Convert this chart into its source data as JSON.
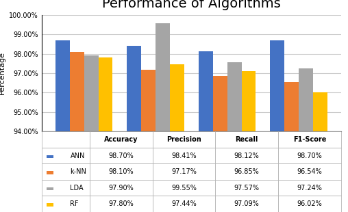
{
  "title": "Performance of Algorithms",
  "categories": [
    "Accuracy",
    "Precision",
    "Recall",
    "F1-Score"
  ],
  "algorithms": [
    "ANN",
    "k-NN",
    "LDA",
    "RF"
  ],
  "values": {
    "ANN": [
      98.7,
      98.41,
      98.12,
      98.7
    ],
    "k-NN": [
      98.1,
      97.17,
      96.85,
      96.54
    ],
    "LDA": [
      97.9,
      99.55,
      97.57,
      97.24
    ],
    "RF": [
      97.8,
      97.44,
      97.09,
      96.02
    ]
  },
  "colors": {
    "ANN": "#4472C4",
    "k-NN": "#ED7D31",
    "LDA": "#A5A5A5",
    "RF": "#FFC000"
  },
  "ylabel": "Percentage",
  "ylim": [
    94.0,
    100.0
  ],
  "yticks": [
    94.0,
    95.0,
    96.0,
    97.0,
    98.0,
    99.0,
    100.0
  ],
  "ytick_labels": [
    "94.00%",
    "95.00%",
    "96.00%",
    "97.00%",
    "98.00%",
    "99.00%",
    "100.00%"
  ],
  "table_rows": [
    [
      "ANN",
      "98.70%",
      "98.41%",
      "98.12%",
      "98.70%"
    ],
    [
      "k-NN",
      "98.10%",
      "97.17%",
      "96.85%",
      "96.54%"
    ],
    [
      "LDA",
      "97.90%",
      "99.55%",
      "97.57%",
      "97.24%"
    ],
    [
      "RF",
      "97.80%",
      "97.44%",
      "97.09%",
      "96.02%"
    ]
  ],
  "background_color": "#FFFFFF",
  "bar_width": 0.2,
  "title_fontsize": 14
}
